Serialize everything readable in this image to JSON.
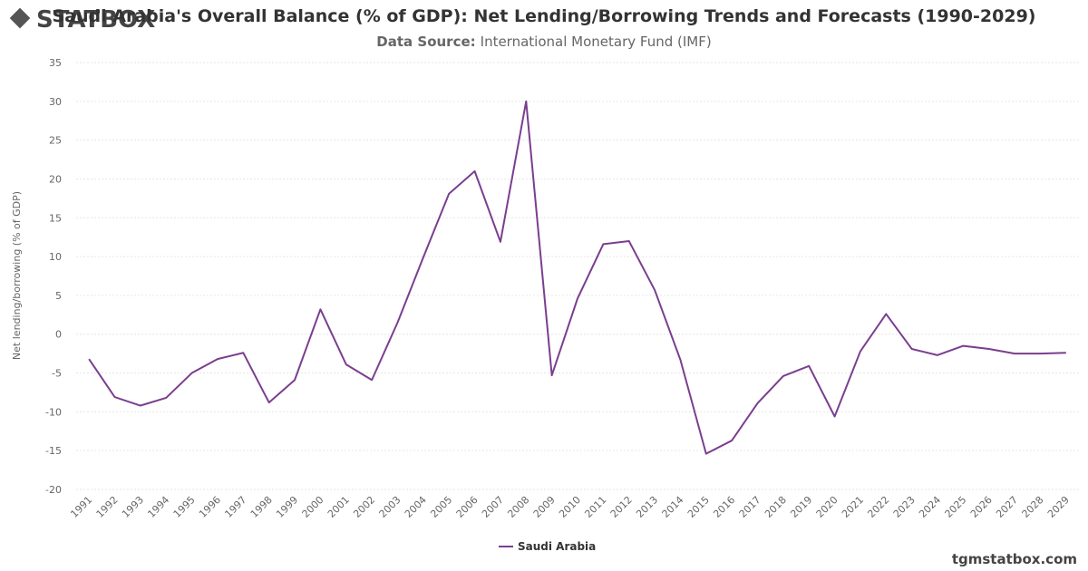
{
  "brand": "STATBOX",
  "footer": "tgmstatbox.com",
  "chart_data": {
    "type": "line",
    "title": "Saudi Arabia's Overall Balance (% of GDP): Net Lending/Borrowing Trends and Forecasts (1990-2029)",
    "source_label": "Data Source:",
    "source": "International Monetary Fund (IMF)",
    "y_label": "Net lending/borrowing (% of GDP)",
    "categories": [
      "1991",
      "1992",
      "1993",
      "1994",
      "1995",
      "1996",
      "1997",
      "1998",
      "1999",
      "2000",
      "2001",
      "2002",
      "2003",
      "2004",
      "2005",
      "2006",
      "2007",
      "2008",
      "2009",
      "2010",
      "2011",
      "2012",
      "2013",
      "2014",
      "2015",
      "2016",
      "2017",
      "2018",
      "2019",
      "2020",
      "2021",
      "2022",
      "2023",
      "2024",
      "2025",
      "2026",
      "2027",
      "2028",
      "2029"
    ],
    "series": [
      {
        "name": "Saudi Arabia",
        "color": "#7a3e8e",
        "values": [
          -3.2,
          -8.1,
          -9.2,
          -8.2,
          -5.0,
          -3.2,
          -2.4,
          -8.8,
          -5.9,
          3.2,
          -3.9,
          -5.9,
          1.5,
          9.9,
          18.1,
          21.0,
          11.9,
          30.0,
          -5.3,
          4.6,
          11.6,
          12.0,
          5.7,
          -3.3,
          -15.4,
          -13.7,
          -8.9,
          -5.4,
          -4.1,
          -10.6,
          -2.2,
          2.6,
          -1.9,
          -2.7,
          -1.5,
          -1.9,
          -2.5,
          -2.5,
          -2.4
        ]
      }
    ],
    "ylim": [
      -20,
      35
    ],
    "yticks": [
      -20,
      -15,
      -10,
      -5,
      0,
      5,
      10,
      15,
      20,
      25,
      30,
      35
    ],
    "grid": true,
    "legend": "bottom"
  }
}
